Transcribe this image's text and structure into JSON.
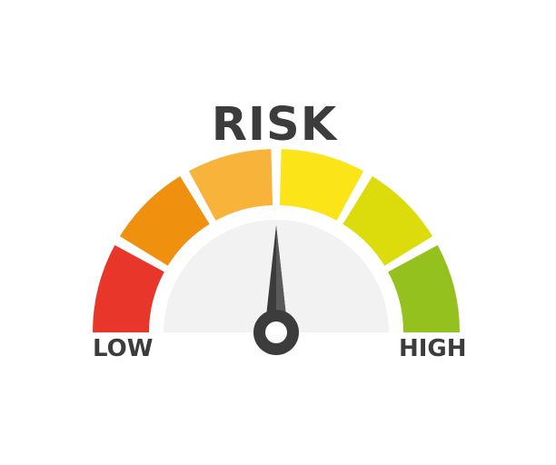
{
  "gauge": {
    "title": "RISK",
    "low_label": "LOW",
    "high_label": "HIGH",
    "needle_level": 0.5,
    "segment_colors": [
      "#e8362b",
      "#f0900f",
      "#f7b33a",
      "#fbe417",
      "#dcdc0c",
      "#95c11f"
    ],
    "dial_color": "#f2f2f2",
    "needle_color": "#3c3c3c",
    "needle_highlight": "#5a5a5a",
    "text_color": "#3c3c3c"
  }
}
